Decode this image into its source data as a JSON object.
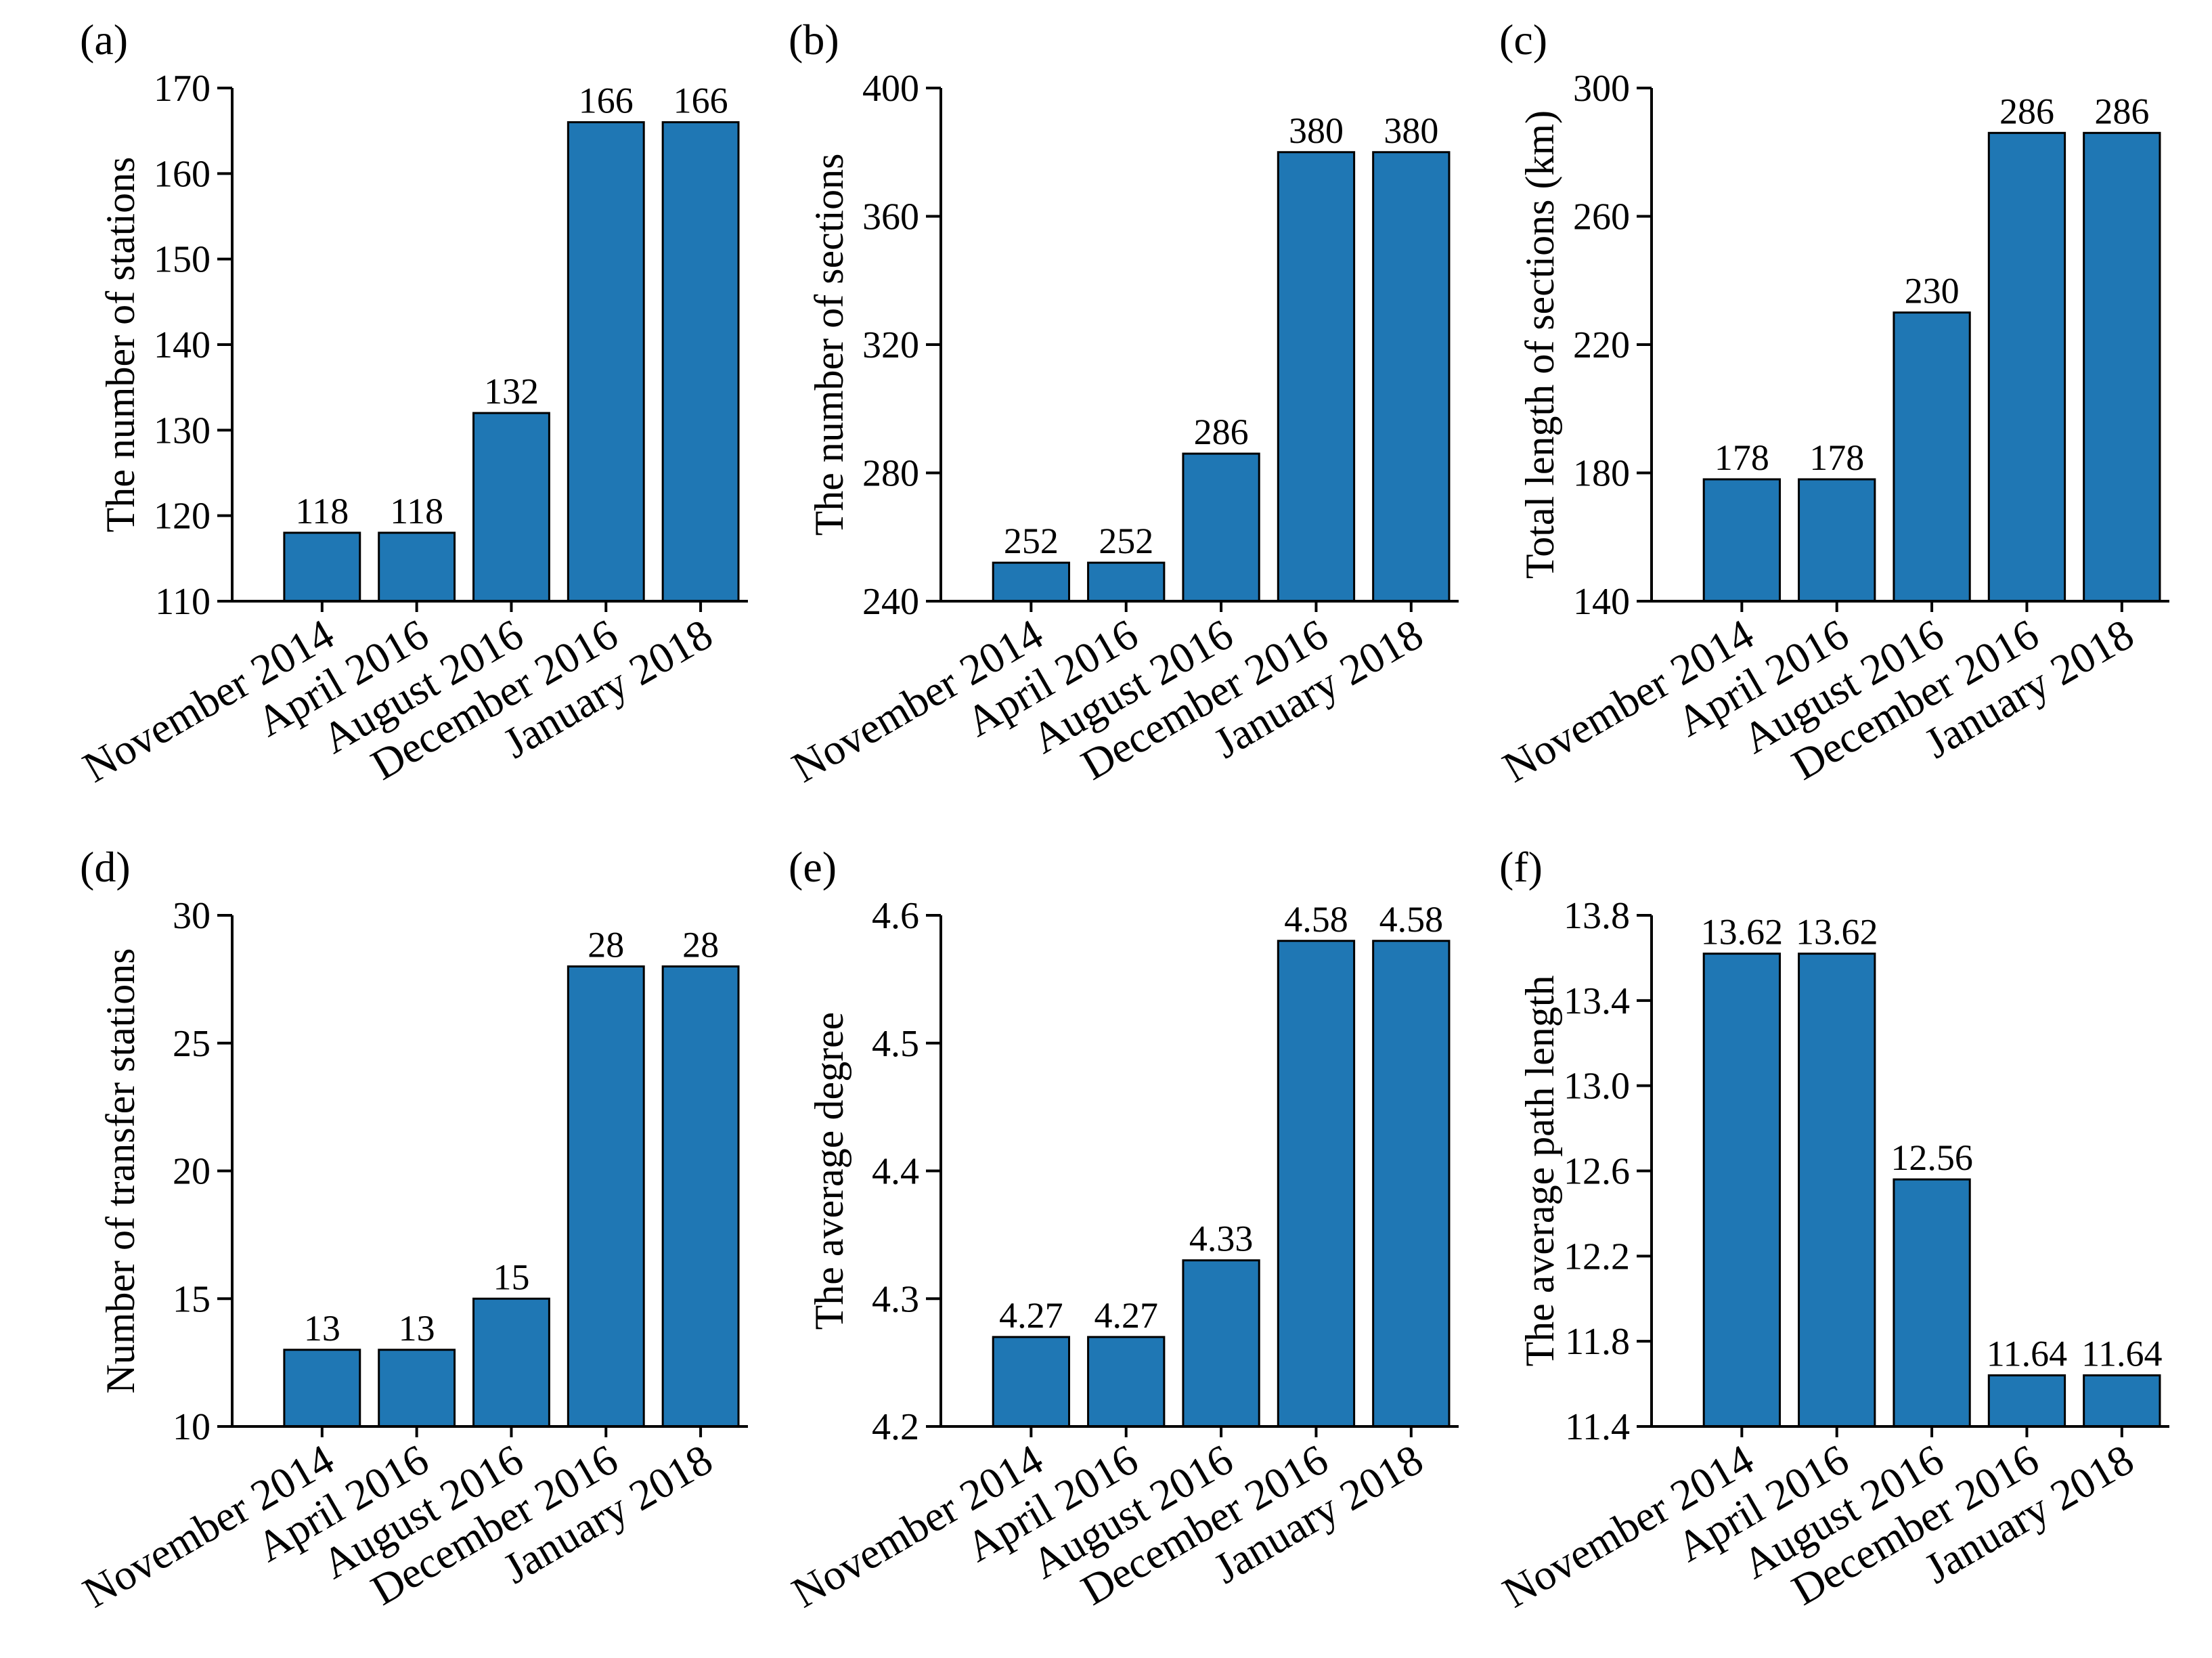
{
  "figure": {
    "bar_color": "#1f77b4",
    "bar_edge_color": "#000000",
    "axis_color": "#000000"
  },
  "chart_data": [
    {
      "type": "bar",
      "panel_label": "(a)",
      "categories": [
        "November 2014",
        "April 2016",
        "August 2016",
        "December 2016",
        "January 2018"
      ],
      "values": [
        118,
        118,
        132,
        166,
        166
      ],
      "value_labels": [
        "118",
        "118",
        "132",
        "166",
        "166"
      ],
      "ylabel": "The number of stations",
      "xlabel": "",
      "ylim": [
        110,
        170
      ],
      "yticks": [
        110,
        120,
        130,
        140,
        150,
        160,
        170
      ],
      "ytick_labels": [
        "110",
        "120",
        "130",
        "140",
        "150",
        "160",
        "170"
      ],
      "grid": false,
      "legend": "none"
    },
    {
      "type": "bar",
      "panel_label": "(b)",
      "categories": [
        "November 2014",
        "April 2016",
        "August 2016",
        "December 2016",
        "January 2018"
      ],
      "values": [
        252,
        252,
        286,
        380,
        380
      ],
      "value_labels": [
        "252",
        "252",
        "286",
        "380",
        "380"
      ],
      "ylabel": "The number of sections",
      "xlabel": "",
      "ylim": [
        240,
        400
      ],
      "yticks": [
        240,
        280,
        320,
        360,
        400
      ],
      "ytick_labels": [
        "240",
        "280",
        "320",
        "360",
        "400"
      ],
      "grid": false,
      "legend": "none"
    },
    {
      "type": "bar",
      "panel_label": "(c)",
      "categories": [
        "November 2014",
        "April 2016",
        "August 2016",
        "December 2016",
        "January 2018"
      ],
      "values": [
        178,
        178,
        230,
        286,
        286
      ],
      "value_labels": [
        "178",
        "178",
        "230",
        "286",
        "286"
      ],
      "ylabel": "Total length of sections (km)",
      "xlabel": "",
      "ylim": [
        140,
        300
      ],
      "yticks": [
        140,
        180,
        220,
        260,
        300
      ],
      "ytick_labels": [
        "140",
        "180",
        "220",
        "260",
        "300"
      ],
      "grid": false,
      "legend": "none"
    },
    {
      "type": "bar",
      "panel_label": "(d)",
      "categories": [
        "November 2014",
        "April 2016",
        "August 2016",
        "December 2016",
        "January 2018"
      ],
      "values": [
        13,
        13,
        15,
        28,
        28
      ],
      "value_labels": [
        "13",
        "13",
        "15",
        "28",
        "28"
      ],
      "ylabel": "Number of transfer stations",
      "xlabel": "",
      "ylim": [
        10,
        30
      ],
      "yticks": [
        10,
        15,
        20,
        25,
        30
      ],
      "ytick_labels": [
        "10",
        "15",
        "20",
        "25",
        "30"
      ],
      "grid": false,
      "legend": "none"
    },
    {
      "type": "bar",
      "panel_label": "(e)",
      "categories": [
        "November 2014",
        "April 2016",
        "August 2016",
        "December 2016",
        "January 2018"
      ],
      "values": [
        4.27,
        4.27,
        4.33,
        4.58,
        4.58
      ],
      "value_labels": [
        "4.27",
        "4.27",
        "4.33",
        "4.58",
        "4.58"
      ],
      "ylabel": "The average degree",
      "xlabel": "",
      "ylim": [
        4.2,
        4.6
      ],
      "yticks": [
        4.2,
        4.3,
        4.4,
        4.5,
        4.6
      ],
      "ytick_labels": [
        "4.2",
        "4.3",
        "4.4",
        "4.5",
        "4.6"
      ],
      "grid": false,
      "legend": "none"
    },
    {
      "type": "bar",
      "panel_label": "(f)",
      "categories": [
        "November 2014",
        "April 2016",
        "August 2016",
        "December 2016",
        "January 2018"
      ],
      "values": [
        13.62,
        13.62,
        12.56,
        11.64,
        11.64
      ],
      "value_labels": [
        "13.62",
        "13.62",
        "12.56",
        "11.64",
        "11.64"
      ],
      "ylabel": "The average path length",
      "xlabel": "",
      "ylim": [
        11.4,
        13.8
      ],
      "yticks": [
        11.4,
        11.8,
        12.2,
        12.6,
        13.0,
        13.4,
        13.8
      ],
      "ytick_labels": [
        "11.4",
        "11.8",
        "12.2",
        "12.6",
        "13.0",
        "13.4",
        "13.8"
      ],
      "grid": false,
      "legend": "none"
    }
  ]
}
